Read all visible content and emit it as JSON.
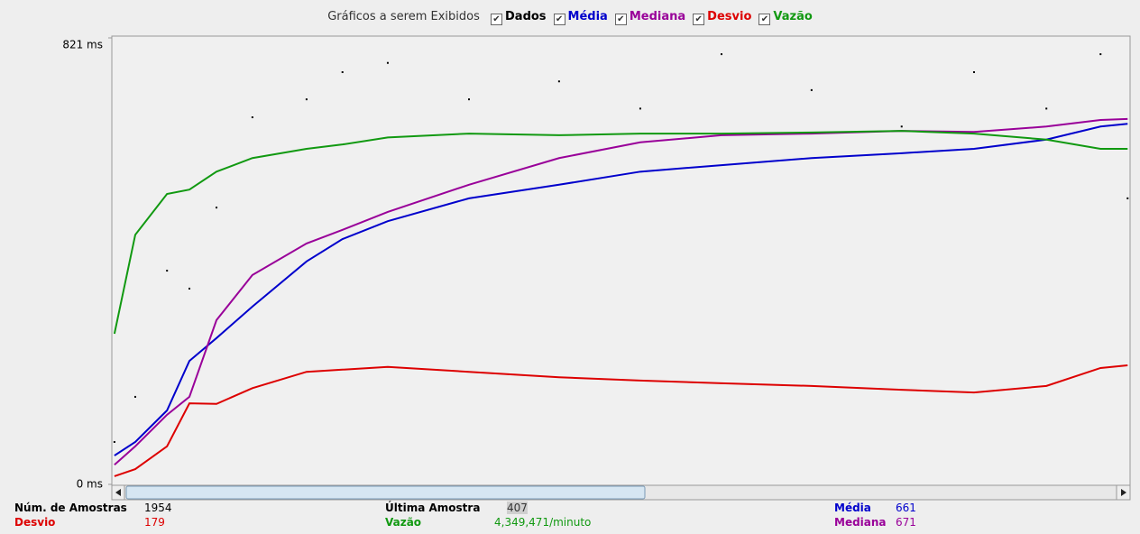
{
  "legend": {
    "title": "Gráficos a serem Exibidos",
    "items": [
      {
        "label": "Dados",
        "color": "#000000",
        "checked": true
      },
      {
        "label": "Média",
        "color": "#0000cc",
        "checked": true
      },
      {
        "label": "Mediana",
        "color": "#990099",
        "checked": true
      },
      {
        "label": "Desvio",
        "color": "#dd0000",
        "checked": true
      },
      {
        "label": "Vazão",
        "color": "#119911",
        "checked": true
      }
    ]
  },
  "chart_data": {
    "type": "line",
    "xlim": [
      0,
      1954
    ],
    "ylim": [
      0,
      821
    ],
    "yticks": [
      {
        "value": 0,
        "label": "0 ms"
      },
      {
        "value": 821,
        "label": "821 ms"
      }
    ],
    "x": [
      5,
      45,
      106,
      149,
      201,
      270,
      374,
      443,
      530,
      686,
      859,
      1015,
      1171,
      1344,
      1517,
      1656,
      1795,
      1899,
      1951
    ],
    "series": [
      {
        "name": "Dados",
        "color": "#000000",
        "style": "points",
        "values": [
          78,
          161,
          393,
          360,
          509,
          675,
          708,
          758,
          775,
          708,
          741,
          691,
          791,
          725,
          658,
          758,
          691,
          791,
          526
        ]
      },
      {
        "name": "Média",
        "color": "#0000cc",
        "style": "line",
        "values": [
          53,
          78,
          136,
          227,
          269,
          327,
          410,
          451,
          484,
          526,
          551,
          575,
          587,
          600,
          609,
          617,
          634,
          658,
          663
        ]
      },
      {
        "name": "Mediana",
        "color": "#990099",
        "style": "line",
        "values": [
          36,
          70,
          128,
          161,
          302,
          385,
          443,
          468,
          501,
          551,
          600,
          629,
          642,
          645,
          650,
          648,
          658,
          670,
          672
        ]
      },
      {
        "name": "Desvio",
        "color": "#dd0000",
        "style": "line",
        "values": [
          15,
          28,
          70,
          149,
          148,
          177,
          207,
          211,
          216,
          207,
          197,
          191,
          186,
          181,
          174,
          169,
          181,
          214,
          219
        ]
      },
      {
        "name": "Vazão",
        "color": "#119911",
        "style": "line",
        "values": [
          277,
          459,
          534,
          542,
          575,
          600,
          617,
          625,
          638,
          645,
          642,
          645,
          645,
          647,
          650,
          645,
          634,
          617,
          617
        ]
      }
    ]
  },
  "stats": [
    {
      "label": "Núm. de Amostras",
      "value": "1954",
      "color": "#000000"
    },
    {
      "label": "Última Amostra",
      "value": "407",
      "color": "#000000"
    },
    {
      "label": "Média",
      "value": "661",
      "color": "#0000cc"
    },
    {
      "label": "Desvio",
      "value": "179",
      "color": "#dd0000"
    },
    {
      "label": "Vazão",
      "value": "4,349,471/minuto",
      "color": "#119911"
    },
    {
      "label": "Mediana",
      "value": "671",
      "color": "#990099"
    }
  ]
}
